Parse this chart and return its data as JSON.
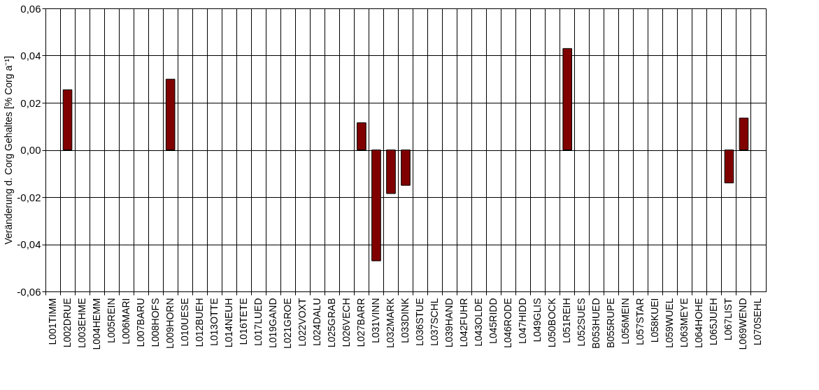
{
  "chart_data": {
    "type": "bar",
    "ylabel": "Veränderung d. Corg Gehaltes [% Corg a⁻¹]",
    "categories": [
      "L001TIMM",
      "L002DRUE",
      "L003EHME",
      "L004HEMM",
      "L005REIN",
      "L006MARI",
      "L007BARU",
      "L008HOFS",
      "L009HORN",
      "L010UESE",
      "L012BUEH",
      "L013OTTE",
      "L014NEUH",
      "L016TETE",
      "L017LUED",
      "L019GAND",
      "L021GROE",
      "L022VOXT",
      "L024DALU",
      "L025GRAB",
      "L026VECH",
      "L027BARR",
      "L031VINN",
      "L032MARK",
      "L033DINK",
      "L036STUE",
      "L037SCHL",
      "L039HAND",
      "L042FUHR",
      "L043OLDE",
      "L045RIDD",
      "L046RODE",
      "L047HIDD",
      "L049GLIS",
      "L050BOCK",
      "L051REIH",
      "L052SUES",
      "B053HUED",
      "B055RUPE",
      "L056MEIN",
      "L057STAR",
      "L058KUEI",
      "L059WUEL",
      "L063MEYE",
      "L064HOHE",
      "L065JUEH",
      "L067LIST",
      "L069WEND",
      "L070SEHL"
    ],
    "series": [
      {
        "color": "#800000",
        "values": [
          null,
          0.0255,
          null,
          null,
          null,
          null,
          null,
          null,
          0.03,
          null,
          null,
          null,
          null,
          null,
          null,
          null,
          null,
          null,
          null,
          null,
          null,
          0.0115,
          -0.047,
          -0.0185,
          -0.015,
          null,
          null,
          null,
          null,
          null,
          null,
          null,
          null,
          null,
          null,
          0.043,
          null,
          null,
          null,
          null,
          null,
          null,
          null,
          null,
          null,
          null,
          -0.014,
          0.0135,
          null
        ]
      }
    ],
    "ylim": [
      -0.06,
      0.06
    ],
    "yticks": [
      {
        "value": -0.06,
        "label": "-0,06"
      },
      {
        "value": -0.04,
        "label": "-0,04"
      },
      {
        "value": -0.02,
        "label": "-0,02"
      },
      {
        "value": 0,
        "label": "0,00"
      },
      {
        "value": 0.02,
        "label": "0,02"
      },
      {
        "value": 0.04,
        "label": "0,04"
      },
      {
        "value": 0.06,
        "label": "0,06"
      }
    ],
    "grid": true,
    "legend": false
  }
}
